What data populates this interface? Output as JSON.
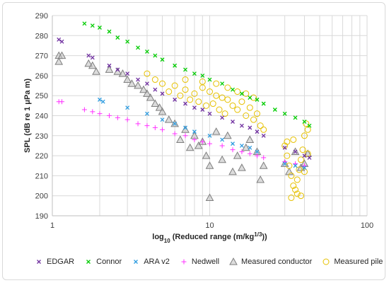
{
  "chart_data": {
    "type": "scatter",
    "title": "",
    "xlabel_main": "log",
    "xlabel_sub": "10",
    "xlabel_rest": " (Reduced range (m/kg",
    "xlabel_sup": "1/3",
    "xlabel_end": "))",
    "ylabel": "SPL (dB re 1 μPa m)",
    "x_scale": "log",
    "xlim": [
      1,
      100
    ],
    "ylim": [
      190,
      290
    ],
    "x_ticks": [
      1,
      10,
      100
    ],
    "x_tick_labels": [
      "1",
      "10",
      "100"
    ],
    "y_ticks": [
      190,
      200,
      210,
      220,
      230,
      240,
      250,
      260,
      270,
      280,
      290
    ],
    "grid": true,
    "legend_position": "bottom",
    "series": [
      {
        "name": "EDGAR",
        "marker": "x",
        "color": "#7030a0",
        "points": [
          [
            1.1,
            278
          ],
          [
            1.15,
            277
          ],
          [
            1.7,
            270
          ],
          [
            1.8,
            269
          ],
          [
            2.3,
            265
          ],
          [
            2.6,
            263
          ],
          [
            3.0,
            261
          ],
          [
            3.5,
            258
          ],
          [
            4.0,
            256
          ],
          [
            4.5,
            253
          ],
          [
            5.0,
            251
          ],
          [
            6.0,
            248
          ],
          [
            7.0,
            246
          ],
          [
            8.0,
            244
          ],
          [
            9.0,
            243
          ],
          [
            10.0,
            241
          ],
          [
            12.0,
            239
          ],
          [
            14.0,
            237
          ],
          [
            16.0,
            235
          ],
          [
            18.0,
            234
          ],
          [
            20.0,
            232
          ],
          [
            22.0,
            230
          ],
          [
            30.0,
            224
          ],
          [
            35.0,
            222
          ],
          [
            40.0,
            220
          ],
          [
            43.0,
            219
          ]
        ]
      },
      {
        "name": "Connor",
        "marker": "x",
        "color": "#00cc00",
        "points": [
          [
            1.6,
            286
          ],
          [
            1.8,
            285
          ],
          [
            2.0,
            284
          ],
          [
            2.3,
            282
          ],
          [
            2.6,
            279
          ],
          [
            3.0,
            277
          ],
          [
            3.5,
            274
          ],
          [
            4.0,
            272
          ],
          [
            4.5,
            270
          ],
          [
            5.0,
            268
          ],
          [
            6.0,
            265
          ],
          [
            7.0,
            263
          ],
          [
            8.0,
            261
          ],
          [
            9.0,
            260
          ],
          [
            10.0,
            258
          ],
          [
            12.0,
            256
          ],
          [
            14.0,
            253
          ],
          [
            16.0,
            251
          ],
          [
            18.0,
            249
          ],
          [
            20.0,
            248
          ],
          [
            22.0,
            246
          ],
          [
            26.0,
            243
          ],
          [
            30.0,
            241
          ],
          [
            35.0,
            239
          ],
          [
            40.0,
            237
          ],
          [
            43.0,
            235
          ]
        ]
      },
      {
        "name": "ARA v2",
        "marker": "x",
        "color": "#2e9ce0",
        "points": [
          [
            2.0,
            248
          ],
          [
            2.1,
            247
          ],
          [
            3.0,
            244
          ],
          [
            4.0,
            241
          ],
          [
            5.0,
            238
          ],
          [
            6.0,
            236
          ],
          [
            7.0,
            234
          ],
          [
            8.0,
            232
          ],
          [
            10.0,
            230
          ],
          [
            12.0,
            228
          ],
          [
            14.0,
            226
          ],
          [
            16.0,
            225
          ],
          [
            18.0,
            224
          ],
          [
            20.0,
            222
          ],
          [
            30.0,
            216
          ],
          [
            35.0,
            215
          ],
          [
            40.0,
            214
          ]
        ]
      },
      {
        "name": "Nedwell",
        "marker": "+",
        "color": "#ff33ff",
        "points": [
          [
            1.1,
            247
          ],
          [
            1.15,
            247
          ],
          [
            1.6,
            243
          ],
          [
            1.8,
            242
          ],
          [
            2.0,
            241
          ],
          [
            2.3,
            240
          ],
          [
            2.6,
            239
          ],
          [
            3.0,
            238
          ],
          [
            3.5,
            236
          ],
          [
            4.0,
            235
          ],
          [
            4.5,
            234
          ],
          [
            5.0,
            233
          ],
          [
            6.0,
            231
          ],
          [
            7.0,
            230
          ],
          [
            8.0,
            228
          ],
          [
            9.0,
            227
          ],
          [
            10.0,
            226
          ],
          [
            12.0,
            225
          ],
          [
            14.0,
            223
          ],
          [
            16.0,
            222
          ],
          [
            18.0,
            221
          ],
          [
            20.0,
            220
          ],
          [
            22.0,
            219
          ],
          [
            30.0,
            217
          ],
          [
            35.0,
            216
          ],
          [
            40.0,
            215
          ]
        ]
      },
      {
        "name": "Measured conductor",
        "marker": "triangle",
        "color": "#7f7f7f",
        "points": [
          [
            1.1,
            270
          ],
          [
            1.15,
            270
          ],
          [
            1.1,
            267
          ],
          [
            1.7,
            266
          ],
          [
            1.8,
            265
          ],
          [
            1.9,
            262
          ],
          [
            2.3,
            263
          ],
          [
            2.6,
            262
          ],
          [
            2.8,
            261
          ],
          [
            3.0,
            258
          ],
          [
            3.2,
            256
          ],
          [
            3.5,
            255
          ],
          [
            3.8,
            253
          ],
          [
            4.0,
            251
          ],
          [
            4.2,
            249
          ],
          [
            4.5,
            246
          ],
          [
            4.8,
            244
          ],
          [
            5.0,
            242
          ],
          [
            5.5,
            238
          ],
          [
            6.0,
            236
          ],
          [
            6.5,
            228
          ],
          [
            7.0,
            233
          ],
          [
            7.5,
            224
          ],
          [
            8.0,
            230
          ],
          [
            8.5,
            225
          ],
          [
            9.0,
            227
          ],
          [
            9.5,
            220
          ],
          [
            10.0,
            215
          ],
          [
            10.0,
            199
          ],
          [
            11.0,
            232
          ],
          [
            12.0,
            218
          ],
          [
            13.0,
            230
          ],
          [
            14.0,
            212
          ],
          [
            15.0,
            220
          ],
          [
            16.0,
            214
          ],
          [
            17.0,
            224
          ],
          [
            18.0,
            228
          ],
          [
            20.0,
            222
          ],
          [
            21.0,
            208
          ],
          [
            22.0,
            215
          ],
          [
            30.0,
            216
          ],
          [
            32.0,
            212
          ],
          [
            35.0,
            222
          ],
          [
            38.0,
            214
          ],
          [
            40.0,
            216
          ],
          [
            42.0,
            221
          ]
        ]
      },
      {
        "name": "Measured pile",
        "marker": "circle",
        "color": "#e6c100",
        "points": [
          [
            4.0,
            261
          ],
          [
            4.5,
            258
          ],
          [
            5.0,
            256
          ],
          [
            5.5,
            252
          ],
          [
            6.0,
            255
          ],
          [
            6.5,
            250
          ],
          [
            7.0,
            253
          ],
          [
            7.5,
            248
          ],
          [
            8.0,
            251
          ],
          [
            8.5,
            247
          ],
          [
            9.0,
            254
          ],
          [
            9.5,
            245
          ],
          [
            10.0,
            252
          ],
          [
            10.5,
            246
          ],
          [
            11.0,
            250
          ],
          [
            11.5,
            243
          ],
          [
            12.0,
            249
          ],
          [
            12.5,
            241
          ],
          [
            13.0,
            248
          ],
          [
            14.0,
            245
          ],
          [
            15.0,
            243
          ],
          [
            16.0,
            247
          ],
          [
            17.0,
            240
          ],
          [
            18.0,
            244
          ],
          [
            19.0,
            238
          ],
          [
            20.0,
            241
          ],
          [
            21.0,
            235
          ],
          [
            22.0,
            233
          ],
          [
            7.0,
            258
          ],
          [
            9.0,
            257
          ],
          [
            11.0,
            256
          ],
          [
            13.0,
            254
          ],
          [
            15.0,
            252
          ],
          [
            17.0,
            251
          ],
          [
            19.0,
            249
          ],
          [
            30.0,
            225
          ],
          [
            31.0,
            220
          ],
          [
            32.0,
            215
          ],
          [
            33.0,
            210
          ],
          [
            34.0,
            205
          ],
          [
            35.0,
            203
          ],
          [
            36.0,
            208
          ],
          [
            37.0,
            213
          ],
          [
            38.0,
            218
          ],
          [
            39.0,
            223
          ],
          [
            40.0,
            230
          ],
          [
            41.0,
            236
          ],
          [
            42.0,
            233
          ],
          [
            33.0,
            199
          ],
          [
            36.0,
            201
          ],
          [
            38.0,
            200
          ],
          [
            40.0,
            212
          ],
          [
            42.0,
            221
          ],
          [
            31.0,
            227
          ],
          [
            34.0,
            228
          ]
        ]
      }
    ]
  }
}
